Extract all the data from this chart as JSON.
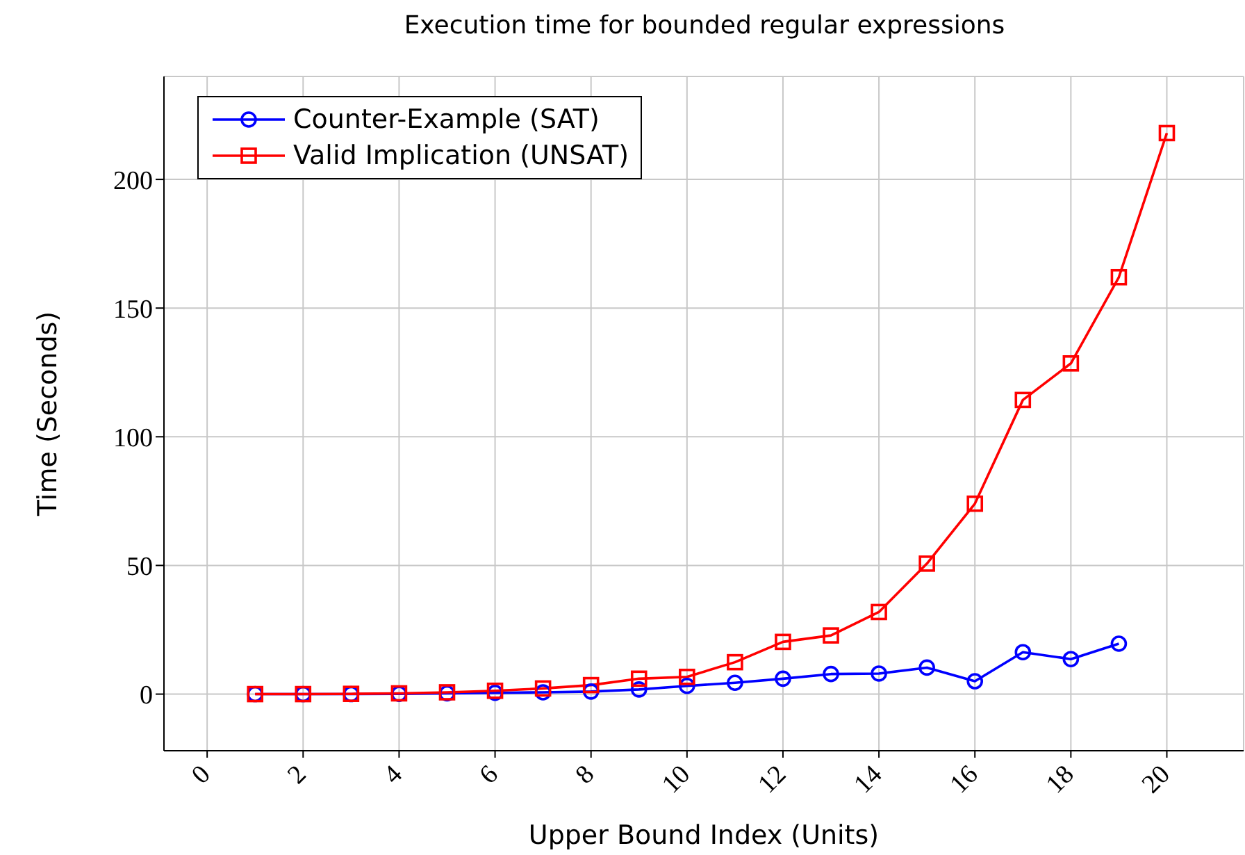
{
  "chart_data": {
    "type": "line",
    "title": "Execution time for bounded regular expressions",
    "xlabel": "Upper Bound Index (Units)",
    "ylabel": "Time (Seconds)",
    "x": [
      1,
      2,
      3,
      4,
      5,
      6,
      7,
      8,
      9,
      10,
      11,
      12,
      13,
      14,
      15,
      16,
      17,
      18,
      19,
      20
    ],
    "series": [
      {
        "name": "Counter-Example (SAT)",
        "color": "#0000ff",
        "marker": "circle",
        "x": [
          1,
          2,
          3,
          4,
          5,
          6,
          7,
          8,
          9,
          10,
          11,
          12,
          13,
          14,
          15,
          16,
          17,
          18,
          19
        ],
        "values": [
          0,
          0,
          0,
          0.1,
          0.3,
          0.5,
          0.7,
          1,
          1.8,
          3.2,
          4.4,
          6,
          7.8,
          8,
          10.3,
          5,
          16.3,
          13.6,
          19.6
        ]
      },
      {
        "name": "Valid Implication (UNSAT)",
        "color": "#ff0000",
        "marker": "square",
        "values": [
          0,
          0,
          0.1,
          0.3,
          0.7,
          1.3,
          2.2,
          3.5,
          6,
          6.7,
          12.4,
          20.3,
          22.8,
          31.9,
          50.7,
          74,
          114.3,
          128.5,
          162,
          218
        ]
      }
    ],
    "xlim": [
      -0.9,
      21.6
    ],
    "xticks": [
      0,
      2,
      4,
      6,
      8,
      10,
      12,
      14,
      16,
      18,
      20
    ],
    "ylim": [
      -22,
      240
    ],
    "yticks": [
      0,
      50,
      100,
      150,
      200
    ],
    "grid": true,
    "legend": "top left",
    "line_style": "solid"
  }
}
